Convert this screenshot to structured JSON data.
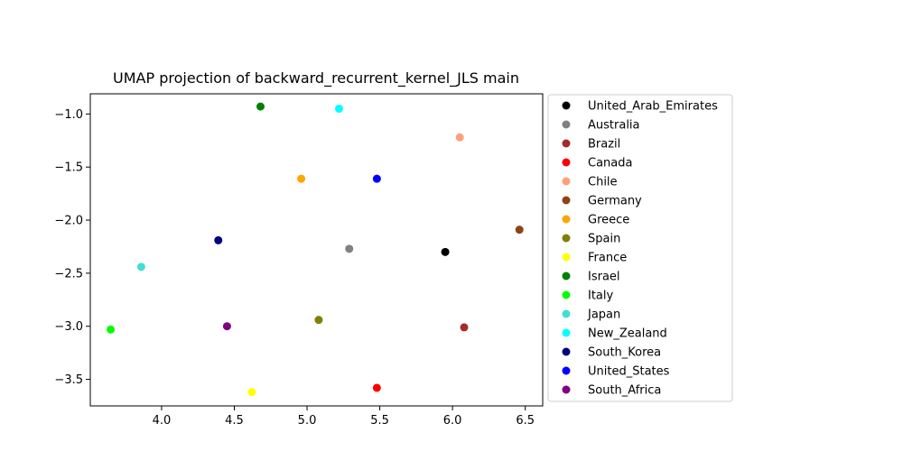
{
  "chart_data": {
    "type": "scatter",
    "title": "UMAP projection of backward_recurrent_kernel_JLS main",
    "xlabel": "",
    "ylabel": "",
    "xlim": [
      3.51,
      6.62
    ],
    "ylim": [
      -3.75,
      -0.81
    ],
    "xticks": [
      4.0,
      4.5,
      5.0,
      5.5,
      6.0,
      6.5
    ],
    "xtick_labels": [
      "4.0",
      "4.5",
      "5.0",
      "5.5",
      "6.0",
      "6.5"
    ],
    "yticks": [
      -1.0,
      -1.5,
      -2.0,
      -2.5,
      -3.0,
      -3.5
    ],
    "ytick_labels": [
      "−1.0",
      "−1.5",
      "−2.0",
      "−2.5",
      "−3.0",
      "−3.5"
    ],
    "grid": false,
    "legend_position": "outside-right",
    "series": [
      {
        "name": "United_Arab_Emirates",
        "color": "#000000",
        "x": 5.95,
        "y": -2.3
      },
      {
        "name": "Australia",
        "color": "#808080",
        "x": 5.29,
        "y": -2.27
      },
      {
        "name": "Brazil",
        "color": "#a52a2a",
        "x": 6.08,
        "y": -3.01
      },
      {
        "name": "Canada",
        "color": "#ff0000",
        "x": 5.48,
        "y": -3.58
      },
      {
        "name": "Chile",
        "color": "#ffa07a",
        "x": 6.05,
        "y": -1.22
      },
      {
        "name": "Germany",
        "color": "#8b4513",
        "x": 6.46,
        "y": -2.09
      },
      {
        "name": "Greece",
        "color": "#ffa500",
        "x": 4.96,
        "y": -1.61
      },
      {
        "name": "Spain",
        "color": "#808000",
        "x": 5.08,
        "y": -2.94
      },
      {
        "name": "France",
        "color": "#ffff00",
        "x": 4.62,
        "y": -3.62
      },
      {
        "name": "Israel",
        "color": "#008000",
        "x": 4.68,
        "y": -0.93
      },
      {
        "name": "Italy",
        "color": "#00ff00",
        "x": 3.65,
        "y": -3.03
      },
      {
        "name": "Japan",
        "color": "#40e0d0",
        "x": 3.86,
        "y": -2.44
      },
      {
        "name": "New_Zealand",
        "color": "#00ffff",
        "x": 5.22,
        "y": -0.95
      },
      {
        "name": "South_Korea",
        "color": "#000080",
        "x": 4.39,
        "y": -2.19
      },
      {
        "name": "United_States",
        "color": "#0000ff",
        "x": 5.48,
        "y": -1.61
      },
      {
        "name": "South_Africa",
        "color": "#800080",
        "x": 4.45,
        "y": -3.0
      }
    ]
  }
}
